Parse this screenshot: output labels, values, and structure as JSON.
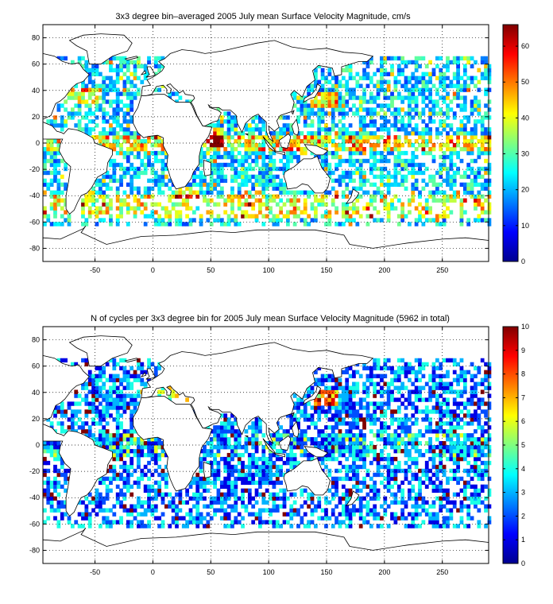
{
  "chart_data": [
    {
      "type": "heatmap",
      "title": "3x3 degree bin–averaged 2005 July mean Surface Velocity Magnitude, cm/s",
      "xlim": [
        -95,
        290
      ],
      "ylim": [
        -90,
        90
      ],
      "xticks": [
        -50,
        0,
        50,
        100,
        150,
        200,
        250
      ],
      "yticks": [
        80,
        60,
        40,
        20,
        0,
        -20,
        -40,
        -60,
        -80
      ],
      "bin_size_deg": 3,
      "grid": "dotted",
      "colormap": "jet",
      "colorbar": {
        "min": 0,
        "max": 66,
        "ticks": [
          0,
          10,
          20,
          30,
          40,
          50,
          60
        ]
      }
    },
    {
      "type": "heatmap",
      "title": "N of cycles per 3x3 degree bin for 2005 July mean Surface Velocity Magnitude (5962 in total)",
      "xlim": [
        -95,
        290
      ],
      "ylim": [
        -90,
        90
      ],
      "xticks": [
        -50,
        0,
        50,
        100,
        150,
        200,
        250
      ],
      "yticks": [
        80,
        60,
        40,
        20,
        0,
        -20,
        -40,
        -60,
        -80
      ],
      "bin_size_deg": 3,
      "grid": "dotted",
      "colormap": "jet",
      "colorbar": {
        "min": 0,
        "max": 10,
        "ticks": [
          0,
          1,
          2,
          3,
          4,
          5,
          6,
          7,
          8,
          9,
          10
        ]
      }
    }
  ]
}
